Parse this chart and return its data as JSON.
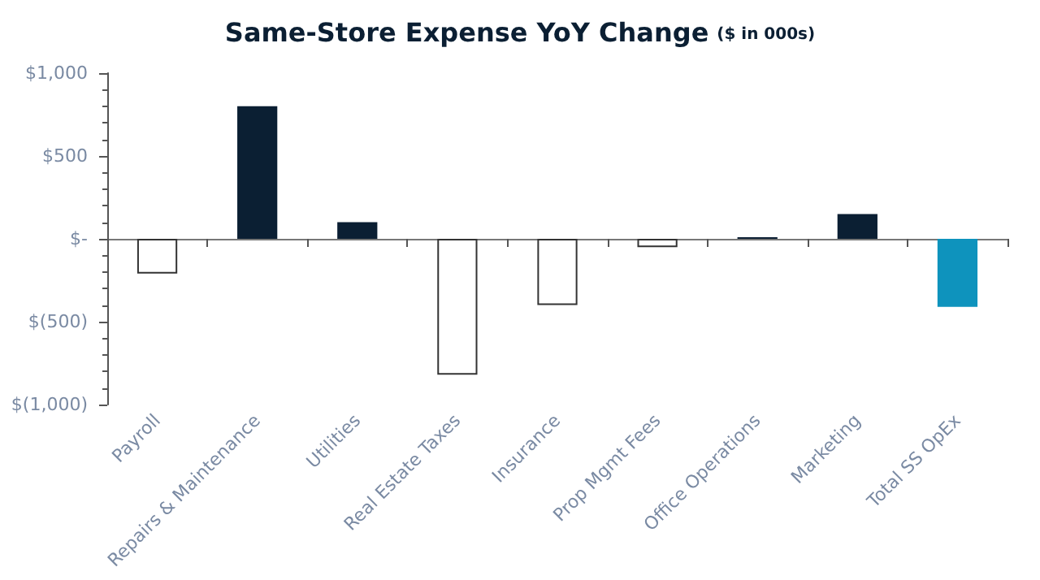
{
  "chart_data": {
    "type": "bar",
    "title": "Same-Store Expense YoY Change",
    "subtitle": "($ in 000s)",
    "categories": [
      "Payroll",
      "Repairs & Maintenance",
      "Utilities",
      "Real Estate Taxes",
      "Insurance",
      "Prop Mgmt Fees",
      "Office Operations",
      "Marketing",
      "Total SS OpEx"
    ],
    "values": [
      -210,
      800,
      100,
      -820,
      -400,
      -50,
      10,
      150,
      -410
    ],
    "colors": [
      "#ffffff",
      "#0b1f33",
      "#0b1f33",
      "#ffffff",
      "#ffffff",
      "#ffffff",
      "#0b1f33",
      "#0b1f33",
      "#0e93bd"
    ],
    "ylim": [
      -1000,
      1000
    ],
    "yticks": [
      {
        "value": -1000,
        "label": "$(1,000)"
      },
      {
        "value": -500,
        "label": "$(500)"
      },
      {
        "value": 0,
        "label": "$-"
      },
      {
        "value": 500,
        "label": "$500"
      },
      {
        "value": 1000,
        "label": "$1,000"
      }
    ],
    "tick_labels": true
  }
}
